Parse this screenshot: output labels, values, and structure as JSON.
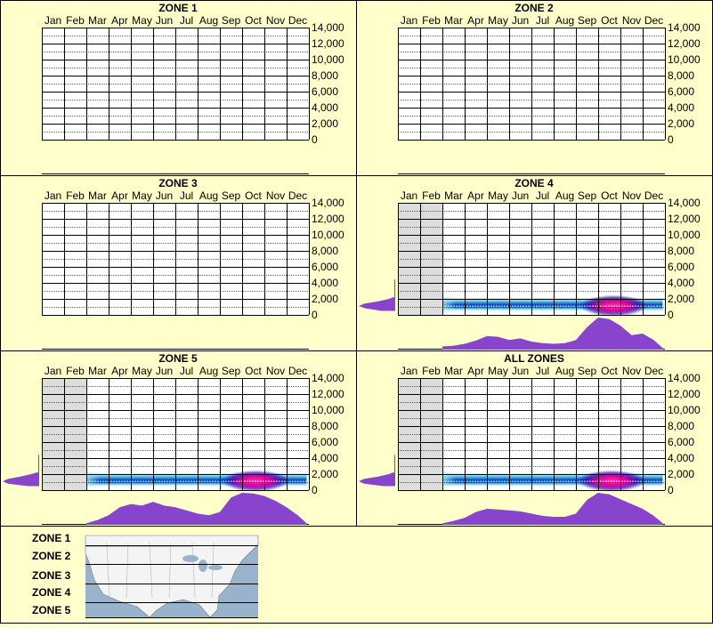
{
  "chart_data": [
    {
      "type": "heatmap",
      "title": "ZONE 1",
      "x_categories": [
        "Jan",
        "Feb",
        "Mar",
        "Apr",
        "May",
        "Jun",
        "Jul",
        "Aug",
        "Sep",
        "Oct",
        "Nov",
        "Dec"
      ],
      "y_ticks": [
        "14,000",
        "12,000",
        "10,000",
        "8,000",
        "6,000",
        "4,000",
        "2,000",
        "0"
      ],
      "ylim": [
        0,
        14000
      ],
      "no_data_months": [],
      "has_data": false,
      "monthly_profile": [],
      "elevation_profile": [],
      "hotspots": []
    },
    {
      "type": "heatmap",
      "title": "ZONE 2",
      "x_categories": [
        "Jan",
        "Feb",
        "Mar",
        "Apr",
        "May",
        "Jun",
        "Jul",
        "Aug",
        "Sep",
        "Oct",
        "Nov",
        "Dec"
      ],
      "y_ticks": [
        "14,000",
        "12,000",
        "10,000",
        "8,000",
        "6,000",
        "4,000",
        "2,000",
        "0"
      ],
      "ylim": [
        0,
        14000
      ],
      "no_data_months": [],
      "has_data": false,
      "monthly_profile": [],
      "elevation_profile": [],
      "hotspots": []
    },
    {
      "type": "heatmap",
      "title": "ZONE 3",
      "x_categories": [
        "Jan",
        "Feb",
        "Mar",
        "Apr",
        "May",
        "Jun",
        "Jul",
        "Aug",
        "Sep",
        "Oct",
        "Nov",
        "Dec"
      ],
      "y_ticks": [
        "14,000",
        "12,000",
        "10,000",
        "8,000",
        "6,000",
        "4,000",
        "2,000",
        "0"
      ],
      "ylim": [
        0,
        14000
      ],
      "no_data_months": [],
      "has_data": false,
      "monthly_profile": [],
      "elevation_profile": [],
      "hotspots": []
    },
    {
      "type": "heatmap",
      "title": "ZONE 4",
      "x_categories": [
        "Jan",
        "Feb",
        "Mar",
        "Apr",
        "May",
        "Jun",
        "Jul",
        "Aug",
        "Sep",
        "Oct",
        "Nov",
        "Dec"
      ],
      "y_ticks": [
        "14,000",
        "12,000",
        "10,000",
        "8,000",
        "6,000",
        "4,000",
        "2,000",
        "0"
      ],
      "ylim": [
        0,
        14000
      ],
      "no_data_months": [
        "Jan",
        "Feb"
      ],
      "has_data": true,
      "data_month_range": [
        2.0,
        11.9
      ],
      "band_elevation": [
        500,
        2200
      ],
      "monthly_profile": [
        [
          2.0,
          0.1
        ],
        [
          2.5,
          0.12
        ],
        [
          3.0,
          0.18
        ],
        [
          3.5,
          0.28
        ],
        [
          4.0,
          0.42
        ],
        [
          4.5,
          0.4
        ],
        [
          5.0,
          0.3
        ],
        [
          5.5,
          0.35
        ],
        [
          6.0,
          0.25
        ],
        [
          6.5,
          0.2
        ],
        [
          7.0,
          0.18
        ],
        [
          7.5,
          0.2
        ],
        [
          8.0,
          0.3
        ],
        [
          8.5,
          0.7
        ],
        [
          9.0,
          1.0
        ],
        [
          9.5,
          0.95
        ],
        [
          10.0,
          0.75
        ],
        [
          10.5,
          0.45
        ],
        [
          11.0,
          0.5
        ],
        [
          11.5,
          0.3
        ],
        [
          11.9,
          0.05
        ]
      ],
      "elevation_profile": [
        [
          500,
          0.35
        ],
        [
          800,
          0.8
        ],
        [
          1100,
          1.0
        ],
        [
          1400,
          0.85
        ],
        [
          1700,
          0.45
        ],
        [
          2000,
          0.15
        ],
        [
          2200,
          0.05
        ]
      ],
      "hotspots": [
        {
          "month": 9.7,
          "elevation": 1150,
          "intensity": 1.0
        }
      ]
    },
    {
      "type": "heatmap",
      "title": "ZONE 5",
      "x_categories": [
        "Jan",
        "Feb",
        "Mar",
        "Apr",
        "May",
        "Jun",
        "Jul",
        "Aug",
        "Sep",
        "Oct",
        "Nov",
        "Dec"
      ],
      "y_ticks": [
        "14,000",
        "12,000",
        "10,000",
        "8,000",
        "6,000",
        "4,000",
        "2,000",
        "0"
      ],
      "ylim": [
        0,
        14000
      ],
      "no_data_months": [
        "Jan",
        "Feb"
      ],
      "has_data": true,
      "data_month_range": [
        2.0,
        11.9
      ],
      "band_elevation": [
        500,
        2200
      ],
      "monthly_profile": [
        [
          2.0,
          0.05
        ],
        [
          2.5,
          0.15
        ],
        [
          3.0,
          0.3
        ],
        [
          3.5,
          0.55
        ],
        [
          4.0,
          0.65
        ],
        [
          4.5,
          0.6
        ],
        [
          5.0,
          0.72
        ],
        [
          5.5,
          0.6
        ],
        [
          6.0,
          0.55
        ],
        [
          6.5,
          0.45
        ],
        [
          7.0,
          0.35
        ],
        [
          7.5,
          0.3
        ],
        [
          8.0,
          0.4
        ],
        [
          8.5,
          0.85
        ],
        [
          9.0,
          1.0
        ],
        [
          9.5,
          0.98
        ],
        [
          10.0,
          0.9
        ],
        [
          10.5,
          0.75
        ],
        [
          11.0,
          0.55
        ],
        [
          11.5,
          0.3
        ],
        [
          11.9,
          0.05
        ]
      ],
      "elevation_profile": [
        [
          500,
          0.3
        ],
        [
          800,
          0.85
        ],
        [
          1100,
          1.0
        ],
        [
          1400,
          0.85
        ],
        [
          1700,
          0.5
        ],
        [
          2000,
          0.2
        ],
        [
          2200,
          0.05
        ]
      ],
      "hotspots": [
        {
          "month": 9.6,
          "elevation": 1150,
          "intensity": 1.0
        }
      ]
    },
    {
      "type": "heatmap",
      "title": "ALL ZONES",
      "x_categories": [
        "Jan",
        "Feb",
        "Mar",
        "Apr",
        "May",
        "Jun",
        "Jul",
        "Aug",
        "Sep",
        "Oct",
        "Nov",
        "Dec"
      ],
      "y_ticks": [
        "14,000",
        "12,000",
        "10,000",
        "8,000",
        "6,000",
        "4,000",
        "2,000",
        "0"
      ],
      "ylim": [
        0,
        14000
      ],
      "no_data_months": [
        "Jan",
        "Feb"
      ],
      "has_data": true,
      "data_month_range": [
        2.0,
        11.9
      ],
      "band_elevation": [
        500,
        2200
      ],
      "monthly_profile": [
        [
          2.0,
          0.05
        ],
        [
          2.5,
          0.12
        ],
        [
          3.0,
          0.22
        ],
        [
          3.5,
          0.4
        ],
        [
          4.0,
          0.5
        ],
        [
          4.5,
          0.48
        ],
        [
          5.0,
          0.45
        ],
        [
          5.5,
          0.42
        ],
        [
          6.0,
          0.35
        ],
        [
          6.5,
          0.28
        ],
        [
          7.0,
          0.25
        ],
        [
          7.5,
          0.25
        ],
        [
          8.0,
          0.35
        ],
        [
          8.5,
          0.78
        ],
        [
          9.0,
          1.0
        ],
        [
          9.5,
          0.95
        ],
        [
          10.0,
          0.8
        ],
        [
          10.5,
          0.65
        ],
        [
          11.0,
          0.5
        ],
        [
          11.5,
          0.28
        ],
        [
          11.9,
          0.05
        ]
      ],
      "elevation_profile": [
        [
          500,
          0.3
        ],
        [
          800,
          0.85
        ],
        [
          1100,
          1.0
        ],
        [
          1400,
          0.85
        ],
        [
          1700,
          0.45
        ],
        [
          2000,
          0.15
        ],
        [
          2200,
          0.05
        ]
      ],
      "hotspots": [
        {
          "month": 9.6,
          "elevation": 1150,
          "intensity": 1.0
        }
      ]
    }
  ],
  "legend": {
    "zones": [
      "ZONE 1",
      "ZONE 2",
      "ZONE 3",
      "ZONE 4",
      "ZONE 5"
    ]
  },
  "colors": {
    "background": "#ffffcc",
    "no_data": "#dddddd",
    "profile_fill": "#8844cc",
    "hot": "#ff0099",
    "cold": "#0000aa"
  }
}
